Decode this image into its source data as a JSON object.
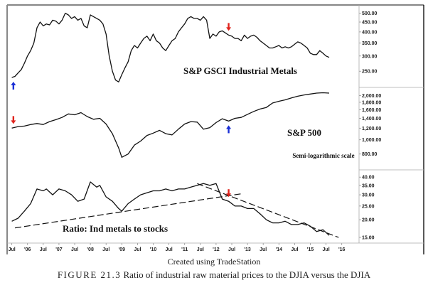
{
  "credit": "Created using TradeStation",
  "figure_caption": {
    "number": "FIGURE 21.3",
    "text": "Ratio of industrial raw material prices to the DJIA versus the DJIA"
  },
  "colors": {
    "line": "#111111",
    "up_arrow": "#1a2fd6",
    "down_arrow": "#e0231c",
    "frame": "#777777"
  },
  "chart_data": [
    {
      "type": "line",
      "title": "S&P GSCI Industrial Metals",
      "scale": "log",
      "ylim": [
        215,
        520
      ],
      "yticks": [
        500,
        450,
        400,
        350,
        300,
        250
      ],
      "ytick_labels": [
        "500.00",
        "450.00",
        "400.00",
        "350.00",
        "300.00",
        "250.00"
      ],
      "x": [
        2005.5,
        2005.6,
        2005.7,
        2005.8,
        2005.9,
        2006.0,
        2006.1,
        2006.2,
        2006.3,
        2006.4,
        2006.5,
        2006.6,
        2006.7,
        2006.8,
        2006.9,
        2007.0,
        2007.1,
        2007.2,
        2007.3,
        2007.4,
        2007.5,
        2007.6,
        2007.7,
        2007.8,
        2007.9,
        2008.0,
        2008.1,
        2008.2,
        2008.3,
        2008.4,
        2008.5,
        2008.6,
        2008.7,
        2008.8,
        2008.9,
        2009.0,
        2009.1,
        2009.2,
        2009.3,
        2009.4,
        2009.5,
        2009.6,
        2009.7,
        2009.8,
        2009.9,
        2010.0,
        2010.1,
        2010.2,
        2010.3,
        2010.4,
        2010.5,
        2010.6,
        2010.7,
        2010.8,
        2010.9,
        2011.0,
        2011.1,
        2011.2,
        2011.3,
        2011.4,
        2011.5,
        2011.6,
        2011.7,
        2011.8,
        2011.9,
        2012.0,
        2012.1,
        2012.2,
        2012.3,
        2012.4,
        2012.5,
        2012.6,
        2012.7,
        2012.8,
        2012.9,
        2013.0,
        2013.1,
        2013.2,
        2013.3,
        2013.4,
        2013.5,
        2013.6,
        2013.7,
        2013.8,
        2013.9,
        2014.0,
        2014.1,
        2014.2,
        2014.3,
        2014.4,
        2014.5,
        2014.6,
        2014.7,
        2014.8,
        2014.9,
        2015.0,
        2015.1,
        2015.2,
        2015.3,
        2015.4,
        2015.5,
        2015.6
      ],
      "y": [
        232,
        235,
        245,
        255,
        275,
        300,
        320,
        350,
        420,
        450,
        430,
        440,
        435,
        460,
        455,
        440,
        460,
        500,
        490,
        470,
        480,
        460,
        470,
        430,
        420,
        490,
        480,
        470,
        460,
        440,
        390,
        300,
        250,
        225,
        220,
        240,
        260,
        280,
        320,
        340,
        330,
        350,
        370,
        380,
        360,
        390,
        360,
        350,
        330,
        320,
        340,
        360,
        370,
        400,
        420,
        440,
        470,
        480,
        470,
        470,
        460,
        480,
        460,
        370,
        390,
        380,
        400,
        405,
        395,
        385,
        380,
        370,
        370,
        360,
        385,
        370,
        380,
        385,
        375,
        360,
        350,
        340,
        330,
        330,
        335,
        340,
        330,
        335,
        330,
        335,
        345,
        355,
        350,
        340,
        330,
        310,
        305,
        305,
        320,
        310,
        300,
        295
      ],
      "arrows": [
        {
          "x": 2005.55,
          "dir": "up"
        },
        {
          "x": 2012.4,
          "dir": "down"
        }
      ]
    },
    {
      "type": "line",
      "title": "S&P 500",
      "note": "Semi-logarithmic scale",
      "scale": "log",
      "ylim": [
        690,
        2150
      ],
      "yticks": [
        2000,
        1800,
        1600,
        1400,
        1200,
        1000,
        800
      ],
      "ytick_labels": [
        "2,000.00",
        "1,800.00",
        "1,600.00",
        "1,400.00",
        "1,200.00",
        "1,000.00",
        "800.00"
      ],
      "x": [
        2005.5,
        2005.7,
        2005.9,
        2006.1,
        2006.3,
        2006.5,
        2006.7,
        2006.9,
        2007.1,
        2007.3,
        2007.5,
        2007.7,
        2007.9,
        2008.1,
        2008.3,
        2008.5,
        2008.7,
        2008.9,
        2009.0,
        2009.2,
        2009.4,
        2009.6,
        2009.8,
        2010.0,
        2010.2,
        2010.4,
        2010.6,
        2010.8,
        2011.0,
        2011.2,
        2011.4,
        2011.6,
        2011.8,
        2012.0,
        2012.2,
        2012.4,
        2012.6,
        2012.8,
        2013.0,
        2013.2,
        2013.4,
        2013.6,
        2013.8,
        2014.0,
        2014.2,
        2014.4,
        2014.6,
        2014.8,
        2015.0,
        2015.2,
        2015.4,
        2015.6
      ],
      "y": [
        1200,
        1230,
        1240,
        1270,
        1290,
        1270,
        1330,
        1370,
        1420,
        1500,
        1480,
        1530,
        1440,
        1380,
        1400,
        1280,
        1100,
        880,
        760,
        800,
        920,
        980,
        1070,
        1110,
        1160,
        1100,
        1080,
        1180,
        1280,
        1330,
        1320,
        1180,
        1210,
        1310,
        1390,
        1340,
        1400,
        1420,
        1490,
        1560,
        1620,
        1660,
        1780,
        1830,
        1870,
        1930,
        1980,
        2020,
        2050,
        2080,
        2090,
        2080
      ],
      "arrows": [
        {
          "x": 2005.55,
          "dir": "down"
        },
        {
          "x": 2012.4,
          "dir": "up"
        }
      ]
    },
    {
      "type": "line",
      "title": "Ratio: Ind metals to stocks",
      "scale": "log",
      "ylim": [
        14,
        42
      ],
      "yticks": [
        40,
        35,
        30,
        25,
        20,
        15
      ],
      "ytick_labels": [
        "40.00",
        "35.00",
        "30.00",
        "25.00",
        "20.00",
        "15.00"
      ],
      "x": [
        2005.5,
        2005.7,
        2005.9,
        2006.1,
        2006.3,
        2006.5,
        2006.6,
        2006.8,
        2007.0,
        2007.2,
        2007.4,
        2007.6,
        2007.8,
        2008.0,
        2008.2,
        2008.3,
        2008.5,
        2008.7,
        2008.9,
        2009.0,
        2009.2,
        2009.4,
        2009.6,
        2009.8,
        2010.0,
        2010.2,
        2010.4,
        2010.6,
        2010.8,
        2011.0,
        2011.2,
        2011.4,
        2011.6,
        2011.8,
        2012.0,
        2012.2,
        2012.4,
        2012.6,
        2012.8,
        2013.0,
        2013.2,
        2013.4,
        2013.6,
        2013.8,
        2014.0,
        2014.2,
        2014.4,
        2014.6,
        2014.8,
        2015.0,
        2015.2,
        2015.4,
        2015.6
      ],
      "y": [
        19.5,
        20.5,
        23,
        26,
        33,
        32,
        33,
        30,
        33,
        32,
        30,
        27,
        28,
        37,
        34,
        35,
        29,
        27,
        24,
        23,
        26,
        28,
        30,
        31,
        32,
        32,
        33,
        32,
        33,
        33,
        34,
        35,
        36,
        35,
        36,
        28,
        27,
        25,
        25,
        24,
        24,
        22,
        20,
        19,
        19,
        19.5,
        18.5,
        18.5,
        19,
        18,
        16.5,
        17,
        15.5
      ],
      "trendlines": [
        {
          "style": "dashed",
          "from": [
            2005.6,
            17.5
          ],
          "to": [
            2012.8,
            30.5
          ]
        },
        {
          "style": "dashed",
          "from": [
            2011.4,
            36
          ],
          "to": [
            2015.9,
            15
          ]
        }
      ],
      "arrows": [
        {
          "x": 2012.4,
          "dir": "down"
        }
      ]
    }
  ],
  "x_axis": {
    "tick_labels": [
      "Jul",
      "'06",
      "Jul",
      "'07",
      "Jul",
      "'08",
      "Jul",
      "'09",
      "Jul",
      "'10",
      "Jul",
      "'11",
      "Jul",
      "'12",
      "Jul",
      "'13",
      "Jul",
      "'14",
      "Jul",
      "'15",
      "Jul",
      "'16"
    ],
    "tick_values": [
      2005.5,
      2006.0,
      2006.5,
      2007.0,
      2007.5,
      2008.0,
      2008.5,
      2009.0,
      2009.5,
      2010.0,
      2010.5,
      2011.0,
      2011.5,
      2012.0,
      2012.5,
      2013.0,
      2013.5,
      2014.0,
      2014.5,
      2015.0,
      2015.5,
      2016.0
    ],
    "xlim": [
      2005.35,
      2016.55
    ]
  }
}
